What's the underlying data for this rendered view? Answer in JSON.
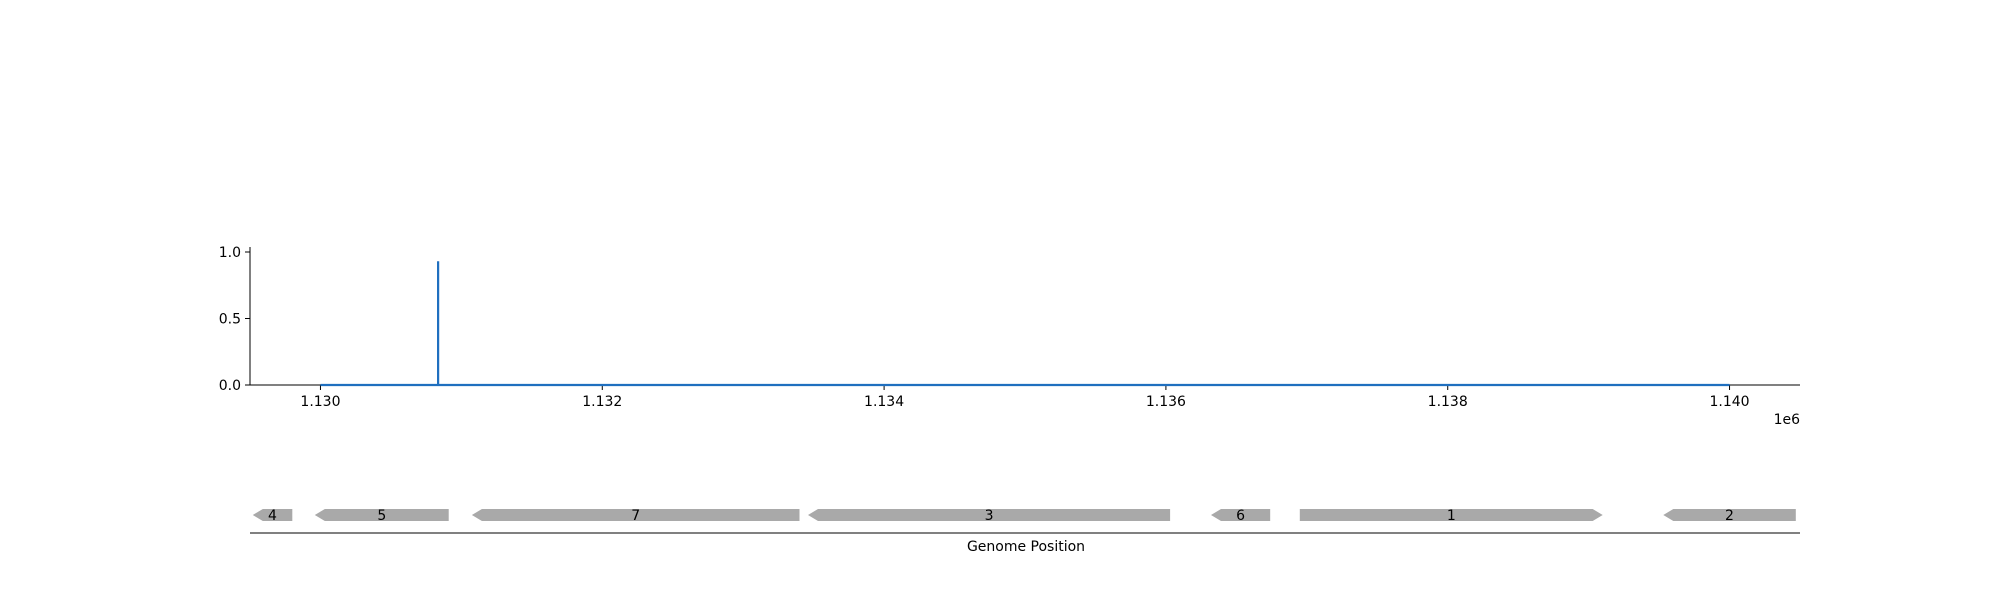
{
  "chart_data": {
    "type": "line",
    "title": "",
    "xlabel": "",
    "ylabel": "",
    "x_offset_label": "1e6",
    "xlim": [
      1129500,
      1140500
    ],
    "ylim": [
      0,
      1.0
    ],
    "x_ticks": [
      {
        "value": 1130000,
        "label": "1.130"
      },
      {
        "value": 1132000,
        "label": "1.132"
      },
      {
        "value": 1134000,
        "label": "1.134"
      },
      {
        "value": 1136000,
        "label": "1.136"
      },
      {
        "value": 1138000,
        "label": "1.138"
      },
      {
        "value": 1140000,
        "label": "1.140"
      }
    ],
    "y_ticks": [
      {
        "value": 0.0,
        "label": "0.0"
      },
      {
        "value": 0.5,
        "label": "0.5"
      },
      {
        "value": 1.0,
        "label": "1.0"
      }
    ],
    "series": [
      {
        "color": "#1f6fbf",
        "x": [
          1130000,
          1130835,
          1130835,
          1130835,
          1140000
        ],
        "y": [
          0.0,
          0.0,
          0.93,
          0.0,
          0.0
        ]
      }
    ],
    "gene_track": {
      "xlabel": "Genome Position",
      "color": "#a9a9a9",
      "genes": [
        {
          "label": "4",
          "start": 1129520,
          "end": 1129800,
          "strand": "-"
        },
        {
          "label": "5",
          "start": 1129960,
          "end": 1130910,
          "strand": "-"
        },
        {
          "label": "7",
          "start": 1131075,
          "end": 1133400,
          "strand": "-"
        },
        {
          "label": "3",
          "start": 1133460,
          "end": 1136030,
          "strand": "-"
        },
        {
          "label": "6",
          "start": 1136320,
          "end": 1136740,
          "strand": "-"
        },
        {
          "label": "1",
          "start": 1136950,
          "end": 1139100,
          "strand": "+"
        },
        {
          "label": "2",
          "start": 1139530,
          "end": 1140470,
          "strand": "-"
        }
      ]
    }
  }
}
